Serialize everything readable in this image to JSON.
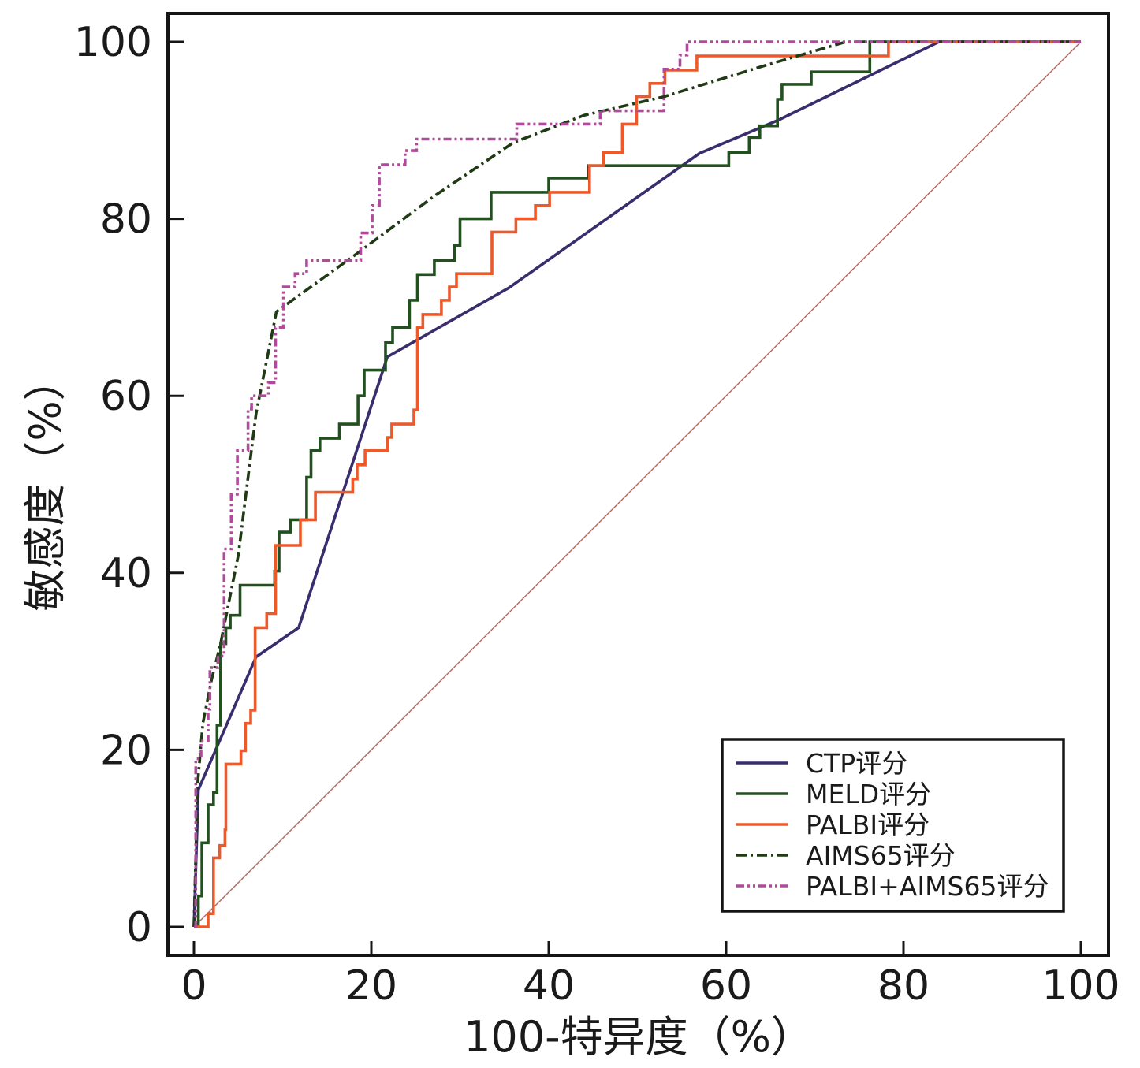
{
  "chart_data": {
    "type": "line",
    "title": "",
    "xlabel": "100-特异度（%）",
    "ylabel": "敏感度（%）",
    "xlim": [
      0,
      100
    ],
    "ylim": [
      0,
      100
    ],
    "x_ticks": [
      "0",
      "20",
      "40",
      "60",
      "80",
      "100"
    ],
    "y_ticks": [
      "0",
      "20",
      "40",
      "60",
      "80",
      "100"
    ],
    "grid": false,
    "legend_position": "bottom-right",
    "reference_line": {
      "name": "reference-diagonal",
      "color": "#b5655c",
      "points": [
        [
          0,
          0
        ],
        [
          100,
          100
        ]
      ]
    },
    "series": [
      {
        "name": "CTP评分",
        "color": "#3a2d6e",
        "style": "solid",
        "points": [
          [
            0,
            0
          ],
          [
            0.5,
            15.5
          ],
          [
            7,
            30.5
          ],
          [
            11.8,
            33.8
          ],
          [
            21.8,
            64.4
          ],
          [
            35.5,
            72.2
          ],
          [
            57,
            87.4
          ],
          [
            66,
            91.2
          ],
          [
            84,
            100
          ],
          [
            100,
            100
          ]
        ]
      },
      {
        "name": "MELD评分",
        "color": "#22501f",
        "style": "solid",
        "points": [
          [
            0,
            0
          ],
          [
            0.5,
            3.5
          ],
          [
            0.9,
            9.5
          ],
          [
            1.6,
            13.8
          ],
          [
            2.2,
            15.2
          ],
          [
            2.6,
            22.8
          ],
          [
            3,
            32
          ],
          [
            3.6,
            33.8
          ],
          [
            4.1,
            35.2
          ],
          [
            5.2,
            38.6
          ],
          [
            9.1,
            40.2
          ],
          [
            9.6,
            44.6
          ],
          [
            10.9,
            46
          ],
          [
            12.7,
            50.8
          ],
          [
            13.2,
            53.8
          ],
          [
            14.2,
            55.2
          ],
          [
            16.4,
            56.8
          ],
          [
            18.5,
            60
          ],
          [
            19.2,
            62.9
          ],
          [
            21.6,
            66
          ],
          [
            22.4,
            67.7
          ],
          [
            24.3,
            70.8
          ],
          [
            25.2,
            73.7
          ],
          [
            27.1,
            75.3
          ],
          [
            29.4,
            77
          ],
          [
            30,
            80
          ],
          [
            33.5,
            83
          ],
          [
            40,
            84.6
          ],
          [
            44.5,
            86
          ],
          [
            60.3,
            87.5
          ],
          [
            62.6,
            89.2
          ],
          [
            63.8,
            90.5
          ],
          [
            65.8,
            93.5
          ],
          [
            66.3,
            95.2
          ],
          [
            69.6,
            96.6
          ],
          [
            76.2,
            100
          ],
          [
            100,
            100
          ]
        ]
      },
      {
        "name": "PALBI评分",
        "color": "#ec5a2b",
        "style": "solid",
        "points": [
          [
            0,
            0
          ],
          [
            1.6,
            1.5
          ],
          [
            2.2,
            7.8
          ],
          [
            2.9,
            9.2
          ],
          [
            3.5,
            11
          ],
          [
            3.6,
            18.4
          ],
          [
            5.3,
            19.9
          ],
          [
            5.8,
            23
          ],
          [
            6.4,
            24.5
          ],
          [
            6.9,
            33.8
          ],
          [
            8.2,
            35.4
          ],
          [
            9.2,
            43.1
          ],
          [
            12,
            46
          ],
          [
            13.7,
            49.1
          ],
          [
            17.9,
            50.6
          ],
          [
            18.4,
            52.2
          ],
          [
            19.3,
            53.8
          ],
          [
            21.8,
            55.3
          ],
          [
            22.3,
            56.8
          ],
          [
            24.8,
            58.4
          ],
          [
            25.2,
            67.7
          ],
          [
            25.8,
            69.2
          ],
          [
            27.9,
            70.8
          ],
          [
            28.8,
            72.3
          ],
          [
            29.6,
            73.8
          ],
          [
            33.6,
            78.5
          ],
          [
            36.3,
            80
          ],
          [
            38.5,
            81.5
          ],
          [
            40.1,
            83
          ],
          [
            44.6,
            86
          ],
          [
            46.2,
            87.5
          ],
          [
            48.3,
            90.7
          ],
          [
            49.9,
            93.8
          ],
          [
            51.4,
            95.3
          ],
          [
            53.1,
            96.8
          ],
          [
            56.7,
            98.4
          ],
          [
            78.3,
            100
          ],
          [
            100,
            100
          ]
        ]
      },
      {
        "name": "AIMS65评分",
        "color": "#1f3a14",
        "style": "dashdot",
        "points": [
          [
            0,
            0
          ],
          [
            0.4,
            16
          ],
          [
            1,
            23
          ],
          [
            2,
            28
          ],
          [
            3,
            32
          ],
          [
            4,
            37
          ],
          [
            5,
            42
          ],
          [
            6,
            50
          ],
          [
            7,
            58
          ],
          [
            8,
            63
          ],
          [
            9.3,
            69.5
          ],
          [
            18,
            75.8
          ],
          [
            27,
            82.5
          ],
          [
            36,
            88.6
          ],
          [
            44,
            91.7
          ],
          [
            53,
            93.8
          ],
          [
            64,
            97.2
          ],
          [
            73.5,
            100
          ],
          [
            100,
            100
          ]
        ]
      },
      {
        "name": "PALBI+AIMS65评分",
        "color": "#b04a9b",
        "style": "dashdotdot",
        "points": [
          [
            0,
            0
          ],
          [
            0.2,
            19
          ],
          [
            0.8,
            21
          ],
          [
            1.6,
            24.6
          ],
          [
            1.8,
            29.3
          ],
          [
            2.7,
            30.6
          ],
          [
            3.4,
            42.7
          ],
          [
            4.2,
            48.9
          ],
          [
            4.9,
            53.8
          ],
          [
            6.1,
            58.5
          ],
          [
            6.5,
            60
          ],
          [
            8.4,
            61.5
          ],
          [
            9.2,
            67.7
          ],
          [
            10.1,
            72.3
          ],
          [
            11.4,
            73.8
          ],
          [
            12.7,
            75.3
          ],
          [
            18.8,
            78.4
          ],
          [
            20.1,
            81.5
          ],
          [
            20.9,
            86.1
          ],
          [
            23.8,
            87.7
          ],
          [
            25.1,
            89
          ],
          [
            36.4,
            90.7
          ],
          [
            45.8,
            92.2
          ],
          [
            53,
            96.9
          ],
          [
            54.8,
            98.5
          ],
          [
            55.6,
            100
          ],
          [
            100,
            100
          ]
        ]
      }
    ]
  }
}
